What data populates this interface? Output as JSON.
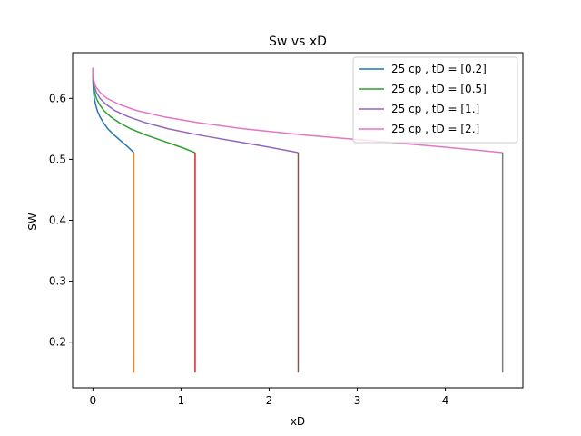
{
  "chart_data": {
    "type": "line",
    "title": "Sw vs xD",
    "xlabel": "xD",
    "ylabel": "SW",
    "xlim": [
      -0.23,
      4.88
    ],
    "ylim": [
      0.125,
      0.675
    ],
    "xticks": [
      0,
      1,
      2,
      3,
      4
    ],
    "yticks": [
      0.2,
      0.3,
      0.4,
      0.5,
      0.6
    ],
    "grid": false,
    "legend_position": "top-right",
    "series": [
      {
        "name": "25 cp , tD = [0.2]",
        "color": "#1f77b4",
        "legend": true,
        "x": [
          0.0,
          0.0002,
          0.001,
          0.003,
          0.008,
          0.016,
          0.03,
          0.05,
          0.08,
          0.12,
          0.17,
          0.24,
          0.32,
          0.4,
          0.465
        ],
        "y": [
          0.65,
          0.64,
          0.63,
          0.62,
          0.61,
          0.6,
          0.59,
          0.58,
          0.57,
          0.56,
          0.55,
          0.54,
          0.53,
          0.52,
          0.511
        ]
      },
      {
        "name": "",
        "color": "#ff7f0e",
        "legend": false,
        "x": [
          0.465,
          0.465
        ],
        "y": [
          0.511,
          0.15
        ]
      },
      {
        "name": "25 cp , tD = [0.5]",
        "color": "#2ca02c",
        "legend": true,
        "x": [
          0.0,
          0.0005,
          0.002,
          0.007,
          0.02,
          0.04,
          0.075,
          0.125,
          0.2,
          0.3,
          0.43,
          0.6,
          0.8,
          1.0,
          1.16
        ],
        "y": [
          0.65,
          0.64,
          0.63,
          0.62,
          0.61,
          0.6,
          0.59,
          0.58,
          0.57,
          0.56,
          0.55,
          0.54,
          0.53,
          0.52,
          0.511
        ]
      },
      {
        "name": "",
        "color": "#d62728",
        "legend": false,
        "x": [
          1.16,
          1.16
        ],
        "y": [
          0.511,
          0.15
        ]
      },
      {
        "name": "25 cp , tD = [1.]",
        "color": "#9467bd",
        "legend": true,
        "x": [
          0.0,
          0.001,
          0.005,
          0.015,
          0.04,
          0.08,
          0.15,
          0.25,
          0.4,
          0.6,
          0.86,
          1.2,
          1.6,
          2.0,
          2.33
        ],
        "y": [
          0.65,
          0.64,
          0.63,
          0.62,
          0.61,
          0.6,
          0.59,
          0.58,
          0.57,
          0.56,
          0.55,
          0.54,
          0.53,
          0.52,
          0.511
        ]
      },
      {
        "name": "",
        "color": "#8c564b",
        "legend": false,
        "x": [
          2.33,
          2.33
        ],
        "y": [
          0.511,
          0.15
        ]
      },
      {
        "name": "25 cp , tD = [2.]",
        "color": "#e377c2",
        "legend": true,
        "x": [
          0.0,
          0.002,
          0.01,
          0.03,
          0.08,
          0.16,
          0.3,
          0.5,
          0.8,
          1.2,
          1.72,
          2.4,
          3.2,
          4.0,
          4.65
        ],
        "y": [
          0.65,
          0.64,
          0.63,
          0.62,
          0.61,
          0.6,
          0.59,
          0.58,
          0.57,
          0.56,
          0.55,
          0.54,
          0.53,
          0.52,
          0.511
        ]
      },
      {
        "name": "",
        "color": "#7f7f7f",
        "legend": false,
        "x": [
          4.65,
          4.65
        ],
        "y": [
          0.511,
          0.15
        ]
      }
    ]
  }
}
